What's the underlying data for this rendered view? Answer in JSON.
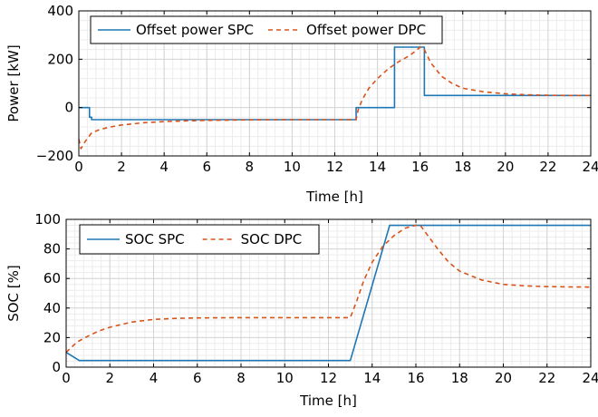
{
  "chart_data": [
    {
      "type": "line",
      "xlabel": "Time [h]",
      "ylabel": "Power [kW]",
      "xlim": [
        0,
        24
      ],
      "ylim": [
        -200,
        400
      ],
      "xticks": [
        0,
        2,
        4,
        6,
        8,
        10,
        12,
        14,
        16,
        18,
        20,
        22,
        24
      ],
      "yticks": [
        -200,
        0,
        200,
        400
      ],
      "ytick_labels": [
        "−200",
        "0",
        "200",
        "400"
      ],
      "grid": true,
      "legend_position": "top",
      "series": [
        {
          "name": "Offset power SPC",
          "style": "solid",
          "color": "#1f77b4",
          "x": [
            0,
            0.5,
            0.5,
            0.6,
            0.6,
            13.0,
            13.0,
            14.8,
            14.8,
            16.2,
            16.2,
            24
          ],
          "y": [
            0,
            0,
            -40,
            -40,
            -50,
            -50,
            0,
            0,
            250,
            250,
            50,
            50
          ]
        },
        {
          "name": "Offset power DPC",
          "style": "dashed",
          "color": "#d95319",
          "x": [
            0,
            0.1,
            0.3,
            0.6,
            1,
            1.5,
            2,
            3,
            4,
            5,
            6,
            7,
            8,
            9,
            10,
            11,
            12,
            13.0,
            13.1,
            13.3,
            13.6,
            14,
            14.5,
            15,
            15.5,
            15.8,
            16.0,
            16.2,
            16.5,
            17,
            17.5,
            18,
            19,
            20,
            21,
            22,
            23,
            24
          ],
          "y": [
            -130,
            -170,
            -140,
            -105,
            -90,
            -80,
            -72,
            -63,
            -58,
            -55,
            -53,
            -52,
            -51,
            -50.5,
            -50,
            -50,
            -50,
            -50,
            -8,
            35,
            80,
            120,
            160,
            190,
            215,
            235,
            250,
            240,
            185,
            130,
            100,
            80,
            65,
            57,
            53,
            51,
            50,
            50
          ]
        }
      ]
    },
    {
      "type": "line",
      "xlabel": "Time [h]",
      "ylabel": "SOC [%]",
      "xlim": [
        0,
        24
      ],
      "ylim": [
        0,
        100
      ],
      "xticks": [
        0,
        2,
        4,
        6,
        8,
        10,
        12,
        14,
        16,
        18,
        20,
        22,
        24
      ],
      "yticks": [
        0,
        20,
        40,
        60,
        80,
        100
      ],
      "ytick_labels": [
        "0",
        "20",
        "40",
        "60",
        "80",
        "100"
      ],
      "grid": true,
      "legend_position": "top-left",
      "series": [
        {
          "name": "SOC SPC",
          "style": "solid",
          "color": "#1f77b4",
          "x": [
            0,
            0.6,
            13.0,
            14.8,
            24
          ],
          "y": [
            10,
            4.5,
            4.5,
            96,
            96
          ]
        },
        {
          "name": "SOC DPC",
          "style": "dashed",
          "color": "#d95319",
          "x": [
            0,
            0.5,
            1,
            1.5,
            2,
            3,
            4,
            5,
            6,
            8,
            10,
            12,
            13.0,
            13.3,
            13.6,
            14,
            14.5,
            15,
            15.5,
            16,
            16.2,
            16.5,
            17,
            17.5,
            18,
            19,
            20,
            21,
            22,
            23,
            24
          ],
          "y": [
            10,
            17,
            21,
            24.5,
            27,
            30.5,
            32.3,
            33,
            33.3,
            33.5,
            33.5,
            33.5,
            33.5,
            45,
            58,
            71,
            82,
            89,
            94,
            96,
            96,
            90,
            80,
            71,
            65,
            59,
            56,
            55,
            54.5,
            54.3,
            54.2
          ]
        }
      ]
    }
  ]
}
